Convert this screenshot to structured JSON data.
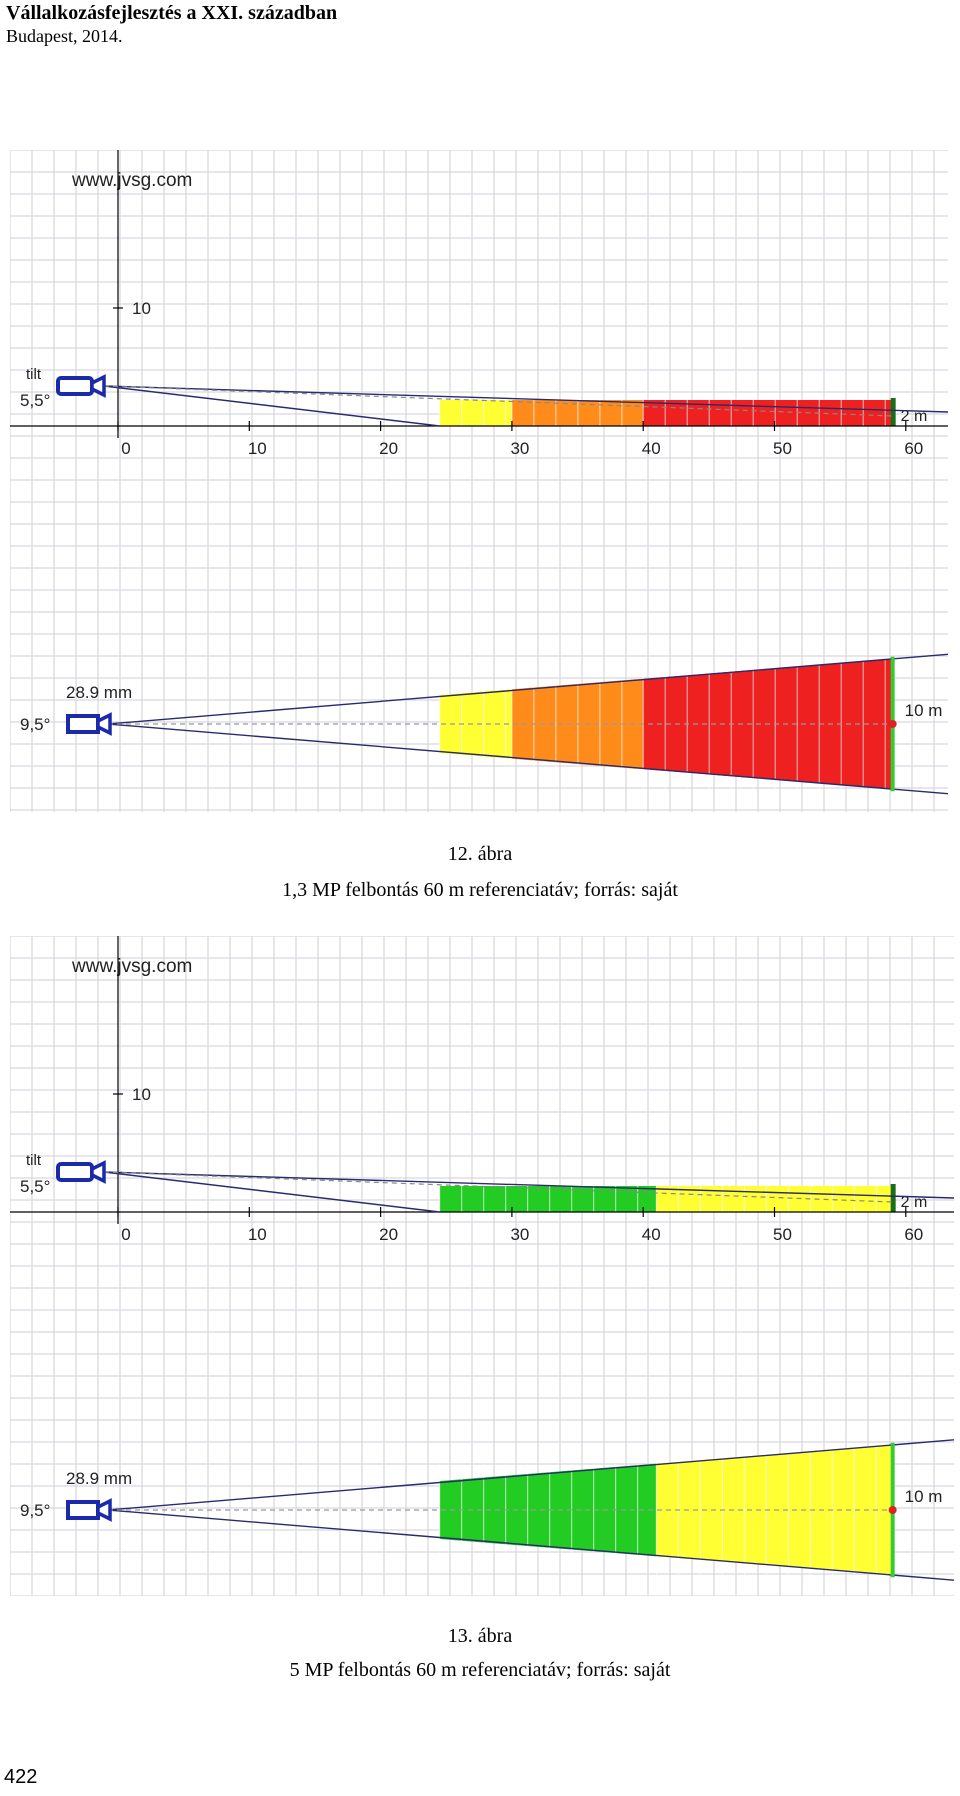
{
  "header": {
    "title": "Vállalkozásfejlesztés a XXI. században",
    "subtitle": "Budapest, 2014."
  },
  "colors": {
    "grid": "#d8d8e0",
    "axis": "#000000",
    "beam": "#2a2a6e",
    "camera": "#1a2aa8",
    "yellow": "#ffff33",
    "orange": "#ff8c1a",
    "red": "#ee2020",
    "green": "#22cc22",
    "target_line": "#33cc33",
    "target_dot": "#dd2222"
  },
  "figures": [
    {
      "watermark": "www.jvsg.com",
      "side_view": {
        "y_tick_label": "10",
        "tilt_label": "tilt",
        "tilt_angle": "5,5°",
        "x_ticks": [
          "0",
          "10",
          "20",
          "30",
          "40",
          "50",
          "60"
        ],
        "height_label": "2 m",
        "zones": [
          {
            "from_m": 24.5,
            "to_m": 30,
            "color": "yellow"
          },
          {
            "from_m": 30,
            "to_m": 40,
            "color": "orange"
          },
          {
            "from_m": 40,
            "to_m": 59,
            "color": "red"
          }
        ]
      },
      "top_view": {
        "focal_label": "28.9 mm",
        "fov_angle": "9,5°",
        "width_label": "10 m",
        "zones": [
          {
            "from_m": 24.5,
            "to_m": 30,
            "color": "yellow"
          },
          {
            "from_m": 30,
            "to_m": 40,
            "color": "orange"
          },
          {
            "from_m": 40,
            "to_m": 59,
            "color": "red"
          }
        ]
      },
      "caption_number": "12. ábra",
      "caption_text": "1,3 MP felbontás 60 m referenciatáv; forrás: saját"
    },
    {
      "watermark": "www.jvsg.com",
      "side_view": {
        "y_tick_label": "10",
        "tilt_label": "tilt",
        "tilt_angle": "5,5°",
        "x_ticks": [
          "0",
          "10",
          "20",
          "30",
          "40",
          "50",
          "60"
        ],
        "height_label": "2 m",
        "zones": [
          {
            "from_m": 24.5,
            "to_m": 41,
            "color": "green"
          },
          {
            "from_m": 41,
            "to_m": 59,
            "color": "yellow"
          }
        ]
      },
      "top_view": {
        "focal_label": "28.9 mm",
        "fov_angle": "9,5°",
        "width_label": "10 m",
        "zones": [
          {
            "from_m": 24.5,
            "to_m": 41,
            "color": "green"
          },
          {
            "from_m": 41,
            "to_m": 59,
            "color": "yellow"
          }
        ]
      },
      "caption_number": "13. ábra",
      "caption_text": "5 MP felbontás 60 m referenciatáv; forrás: saját"
    }
  ],
  "page_number": "422"
}
